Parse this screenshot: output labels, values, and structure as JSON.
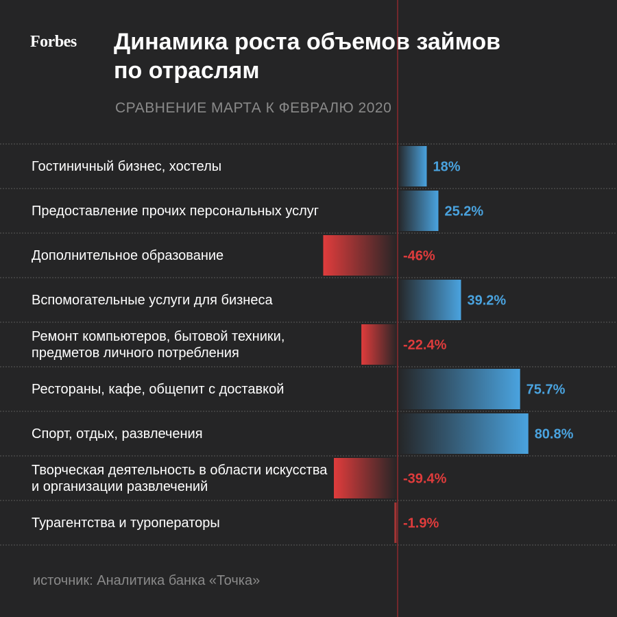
{
  "logo_text": "Forbes",
  "title": "Динамика роста объемов займов по отраслям",
  "subtitle": "СРАВНЕНИЕ МАРТА К ФЕВРАЛЮ 2020",
  "source": "источник: Аналитика банка «Точка»",
  "colors": {
    "background": "#252526",
    "positive": "#4aa3df",
    "negative": "#e03c3c",
    "zero_line": "#8b2a2e",
    "separator": "#5a5a5a"
  },
  "chart_data": {
    "type": "bar",
    "orientation": "horizontal",
    "categories": [
      "Гостиничный бизнес, хостелы",
      "Предоставление прочих персональных услуг",
      "Дополнительное образование",
      "Вспомогательные услуги для бизнеса",
      "Ремонт компьютеров, бытовой техники, предметов личного потребления",
      "Рестораны, кафе, общепит с доставкой",
      "Спорт, отдых, развлечения",
      "Творческая деятельность в области искусства и организации развлечений",
      "Турагентства и туроператоры"
    ],
    "values": [
      18,
      25.2,
      -46,
      39.2,
      -22.4,
      75.7,
      80.8,
      -39.4,
      -1.9
    ],
    "value_labels": [
      "18%",
      "25.2%",
      "-46%",
      "39.2%",
      "-22.4%",
      "75.7%",
      "80.8%",
      "-39.4%",
      "-1.9%"
    ],
    "unit": "%",
    "title": "Динамика роста объемов займов по отраслям",
    "subtitle": "СРАВНЕНИЕ МАРТА К ФЕВРАЛЮ 2020",
    "grid": false,
    "legend": false
  }
}
